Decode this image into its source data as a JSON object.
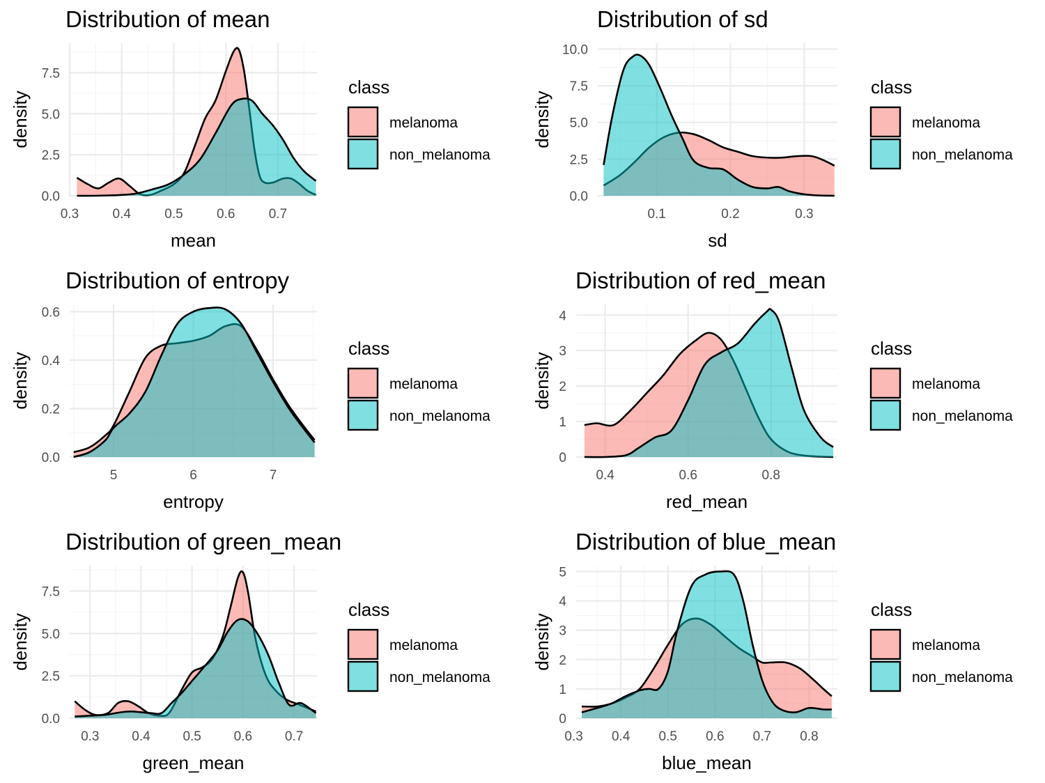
{
  "legend": {
    "title": "class",
    "entries": [
      {
        "name": "melanoma",
        "color": "#F8766D"
      },
      {
        "name": "non_melanoma",
        "color": "#00BFC4"
      }
    ]
  },
  "colors": {
    "melanoma": "#F8766D",
    "non_melanoma": "#00BFC4",
    "grid_major": "#ebebeb",
    "grid_minor": "#f5f5f5",
    "outline": "#000000",
    "fill_opacity": 0.5
  },
  "chart_data": [
    {
      "type": "area",
      "title": "Distribution of mean",
      "xlabel": "mean",
      "ylabel": "density",
      "xlim": [
        0.3,
        0.775
      ],
      "ylim": [
        0,
        9.3
      ],
      "xticks": [
        0.3,
        0.4,
        0.5,
        0.6,
        0.7
      ],
      "xtick_labels": [
        "0.3",
        "0.4",
        "0.5",
        "0.6",
        "0.7"
      ],
      "yticks": [
        0,
        2.5,
        5,
        7.5
      ],
      "ytick_labels": [
        "0.0",
        "2.5",
        "5.0",
        "7.5"
      ],
      "grid": true,
      "legend_position": "right",
      "series": [
        {
          "name": "melanoma",
          "x": [
            0.314,
            0.335,
            0.355,
            0.375,
            0.395,
            0.415,
            0.435,
            0.455,
            0.475,
            0.5,
            0.52,
            0.54,
            0.56,
            0.58,
            0.6,
            0.615,
            0.625,
            0.635,
            0.645,
            0.655,
            0.665,
            0.675,
            0.69,
            0.71,
            0.725,
            0.74,
            0.757,
            0.773
          ],
          "y": [
            1.1,
            0.7,
            0.45,
            0.8,
            1.05,
            0.6,
            0.1,
            0.05,
            0.3,
            0.7,
            1.4,
            3.0,
            4.7,
            5.8,
            7.6,
            8.8,
            8.9,
            7.6,
            5.3,
            2.8,
            1.2,
            0.8,
            0.8,
            1.05,
            1.05,
            0.75,
            0.3,
            0.05
          ]
        },
        {
          "name": "non_melanoma",
          "x": [
            0.314,
            0.35,
            0.4,
            0.43,
            0.46,
            0.49,
            0.52,
            0.55,
            0.58,
            0.61,
            0.63,
            0.65,
            0.67,
            0.69,
            0.71,
            0.73,
            0.75,
            0.773
          ],
          "y": [
            0,
            0,
            0.05,
            0.15,
            0.4,
            0.7,
            1.3,
            2.2,
            3.8,
            5.5,
            5.9,
            5.8,
            5.0,
            4.3,
            3.4,
            2.3,
            1.5,
            0.9
          ]
        }
      ]
    },
    {
      "type": "area",
      "title": "Distribution of sd",
      "xlabel": "sd",
      "ylabel": "density",
      "xlim": [
        0.02,
        0.345
      ],
      "ylim": [
        0,
        10.4
      ],
      "xticks": [
        0.1,
        0.2,
        0.3
      ],
      "xtick_labels": [
        "0.1",
        "0.2",
        "0.3"
      ],
      "yticks": [
        0,
        2.5,
        5,
        7.5,
        10
      ],
      "ytick_labels": [
        "0.0",
        "2.5",
        "5.0",
        "7.5",
        "10.0"
      ],
      "grid": true,
      "legend_position": "right",
      "series": [
        {
          "name": "melanoma",
          "x": [
            0.028,
            0.05,
            0.07,
            0.09,
            0.11,
            0.13,
            0.15,
            0.17,
            0.19,
            0.21,
            0.23,
            0.25,
            0.27,
            0.29,
            0.31,
            0.325,
            0.341
          ],
          "y": [
            0.7,
            1.4,
            2.3,
            3.3,
            4.0,
            4.3,
            4.2,
            3.8,
            3.3,
            3.0,
            2.7,
            2.6,
            2.6,
            2.7,
            2.7,
            2.45,
            2.05
          ]
        },
        {
          "name": "non_melanoma",
          "x": [
            0.028,
            0.04,
            0.055,
            0.068,
            0.078,
            0.09,
            0.105,
            0.12,
            0.135,
            0.15,
            0.17,
            0.19,
            0.21,
            0.23,
            0.25,
            0.265,
            0.28,
            0.3,
            0.32,
            0.341
          ],
          "y": [
            2.1,
            5.5,
            8.6,
            9.5,
            9.55,
            8.9,
            7.3,
            5.5,
            3.9,
            2.4,
            1.9,
            1.8,
            1.1,
            0.6,
            0.5,
            0.6,
            0.3,
            0.1,
            0.02,
            0
          ]
        }
      ]
    },
    {
      "type": "area",
      "title": "Distribution of entropy",
      "xlabel": "entropy",
      "ylabel": "density",
      "xlim": [
        4.45,
        7.55
      ],
      "ylim": [
        0,
        0.63
      ],
      "xticks": [
        5,
        6,
        7
      ],
      "xtick_labels": [
        "5",
        "6",
        "7"
      ],
      "yticks": [
        0,
        0.2,
        0.4,
        0.6
      ],
      "ytick_labels": [
        "0.0",
        "0.2",
        "0.4",
        "0.6"
      ],
      "grid": true,
      "legend_position": "right",
      "series": [
        {
          "name": "melanoma",
          "x": [
            4.5,
            4.7,
            4.9,
            5.0,
            5.2,
            5.4,
            5.6,
            5.8,
            6.0,
            6.2,
            6.4,
            6.6,
            6.8,
            7.0,
            7.2,
            7.4,
            7.52
          ],
          "y": [
            0.02,
            0.04,
            0.09,
            0.13,
            0.27,
            0.41,
            0.46,
            0.47,
            0.48,
            0.5,
            0.54,
            0.54,
            0.44,
            0.32,
            0.21,
            0.12,
            0.07
          ]
        },
        {
          "name": "non_melanoma",
          "x": [
            4.5,
            4.7,
            4.9,
            5.0,
            5.2,
            5.4,
            5.6,
            5.8,
            6.0,
            6.2,
            6.4,
            6.6,
            6.8,
            7.0,
            7.2,
            7.4,
            7.52
          ],
          "y": [
            0.0,
            0.02,
            0.07,
            0.12,
            0.18,
            0.27,
            0.42,
            0.55,
            0.6,
            0.615,
            0.61,
            0.55,
            0.43,
            0.31,
            0.2,
            0.11,
            0.06
          ]
        }
      ]
    },
    {
      "type": "area",
      "title": "Distribution of red_mean",
      "xlabel": "red_mean",
      "ylabel": "density",
      "xlim": [
        0.33,
        0.96
      ],
      "ylim": [
        0,
        4.3
      ],
      "xticks": [
        0.4,
        0.6,
        0.8
      ],
      "xtick_labels": [
        "0.4",
        "0.6",
        "0.8"
      ],
      "yticks": [
        0,
        1,
        2,
        3,
        4
      ],
      "ytick_labels": [
        "0",
        "1",
        "2",
        "3",
        "4"
      ],
      "grid": true,
      "legend_position": "right",
      "series": [
        {
          "name": "melanoma",
          "x": [
            0.35,
            0.38,
            0.42,
            0.46,
            0.5,
            0.54,
            0.58,
            0.62,
            0.65,
            0.68,
            0.71,
            0.74,
            0.77,
            0.8,
            0.84,
            0.88,
            0.92,
            0.95
          ],
          "y": [
            0.9,
            0.95,
            0.9,
            1.3,
            1.8,
            2.3,
            2.9,
            3.3,
            3.5,
            3.3,
            2.7,
            1.9,
            1.1,
            0.5,
            0.15,
            0.04,
            0.01,
            0.0
          ]
        },
        {
          "name": "non_melanoma",
          "x": [
            0.35,
            0.4,
            0.45,
            0.48,
            0.52,
            0.56,
            0.6,
            0.64,
            0.68,
            0.72,
            0.76,
            0.79,
            0.8,
            0.82,
            0.85,
            0.88,
            0.92,
            0.95
          ],
          "y": [
            0.0,
            0.0,
            0.05,
            0.25,
            0.55,
            0.75,
            1.6,
            2.6,
            2.95,
            3.2,
            3.75,
            4.1,
            4.15,
            3.8,
            2.5,
            1.3,
            0.55,
            0.28
          ]
        }
      ]
    },
    {
      "type": "area",
      "title": "Distribution of green_mean",
      "xlabel": "green_mean",
      "ylabel": "density",
      "xlim": [
        0.26,
        0.745
      ],
      "ylim": [
        0,
        9.0
      ],
      "xticks": [
        0.3,
        0.4,
        0.5,
        0.6,
        0.7
      ],
      "xtick_labels": [
        "0.3",
        "0.4",
        "0.5",
        "0.6",
        "0.7"
      ],
      "yticks": [
        0,
        2.5,
        5,
        7.5
      ],
      "ytick_labels": [
        "0.0",
        "2.5",
        "5.0",
        "7.5"
      ],
      "grid": true,
      "legend_position": "right",
      "series": [
        {
          "name": "melanoma",
          "x": [
            0.27,
            0.29,
            0.31,
            0.335,
            0.355,
            0.375,
            0.395,
            0.415,
            0.435,
            0.455,
            0.48,
            0.5,
            0.52,
            0.54,
            0.56,
            0.575,
            0.59,
            0.6,
            0.61,
            0.625,
            0.645,
            0.665,
            0.685,
            0.71,
            0.743
          ],
          "y": [
            1.0,
            0.5,
            0.2,
            0.3,
            0.9,
            1.0,
            0.7,
            0.3,
            0.15,
            0.3,
            1.7,
            2.7,
            3.0,
            3.5,
            4.8,
            6.5,
            8.3,
            8.6,
            7.4,
            4.6,
            2.5,
            1.6,
            1.1,
            0.8,
            0.4
          ]
        },
        {
          "name": "non_melanoma",
          "x": [
            0.27,
            0.3,
            0.33,
            0.36,
            0.38,
            0.4,
            0.42,
            0.44,
            0.46,
            0.48,
            0.5,
            0.52,
            0.55,
            0.57,
            0.59,
            0.61,
            0.63,
            0.65,
            0.67,
            0.69,
            0.71,
            0.72,
            0.743
          ],
          "y": [
            0.1,
            0.15,
            0.2,
            0.35,
            0.4,
            0.35,
            0.3,
            0.3,
            0.9,
            1.5,
            2.2,
            2.9,
            4.0,
            5.1,
            5.8,
            5.7,
            4.9,
            3.7,
            2.1,
            0.8,
            0.9,
            0.8,
            0.3
          ]
        }
      ]
    },
    {
      "type": "area",
      "title": "Distribution of blue_mean",
      "xlabel": "blue_mean",
      "ylabel": "density",
      "xlim": [
        0.305,
        0.86
      ],
      "ylim": [
        0,
        5.2
      ],
      "xticks": [
        0.3,
        0.4,
        0.5,
        0.6,
        0.7,
        0.8
      ],
      "xtick_labels": [
        "0.3",
        "0.4",
        "0.5",
        "0.6",
        "0.7",
        "0.8"
      ],
      "yticks": [
        0,
        1,
        2,
        3,
        4,
        5
      ],
      "ytick_labels": [
        "0",
        "1",
        "2",
        "3",
        "4",
        "5"
      ],
      "grid": true,
      "legend_position": "right",
      "series": [
        {
          "name": "melanoma",
          "x": [
            0.317,
            0.35,
            0.38,
            0.41,
            0.44,
            0.47,
            0.5,
            0.53,
            0.56,
            0.59,
            0.62,
            0.65,
            0.68,
            0.7,
            0.72,
            0.75,
            0.78,
            0.81,
            0.83,
            0.848
          ],
          "y": [
            0.4,
            0.4,
            0.5,
            0.7,
            1.0,
            1.7,
            2.5,
            3.2,
            3.4,
            3.2,
            2.8,
            2.4,
            2.1,
            1.9,
            1.9,
            1.9,
            1.7,
            1.3,
            1.0,
            0.75
          ]
        },
        {
          "name": "non_melanoma",
          "x": [
            0.317,
            0.35,
            0.38,
            0.41,
            0.44,
            0.46,
            0.48,
            0.5,
            0.52,
            0.55,
            0.58,
            0.61,
            0.64,
            0.66,
            0.68,
            0.7,
            0.72,
            0.74,
            0.77,
            0.8,
            0.83,
            0.848
          ],
          "y": [
            0.2,
            0.35,
            0.5,
            0.75,
            0.95,
            1.0,
            1.0,
            1.6,
            3.0,
            4.5,
            4.9,
            5.0,
            4.9,
            4.0,
            2.5,
            1.3,
            0.6,
            0.3,
            0.2,
            0.35,
            0.3,
            0.3
          ]
        }
      ]
    }
  ]
}
